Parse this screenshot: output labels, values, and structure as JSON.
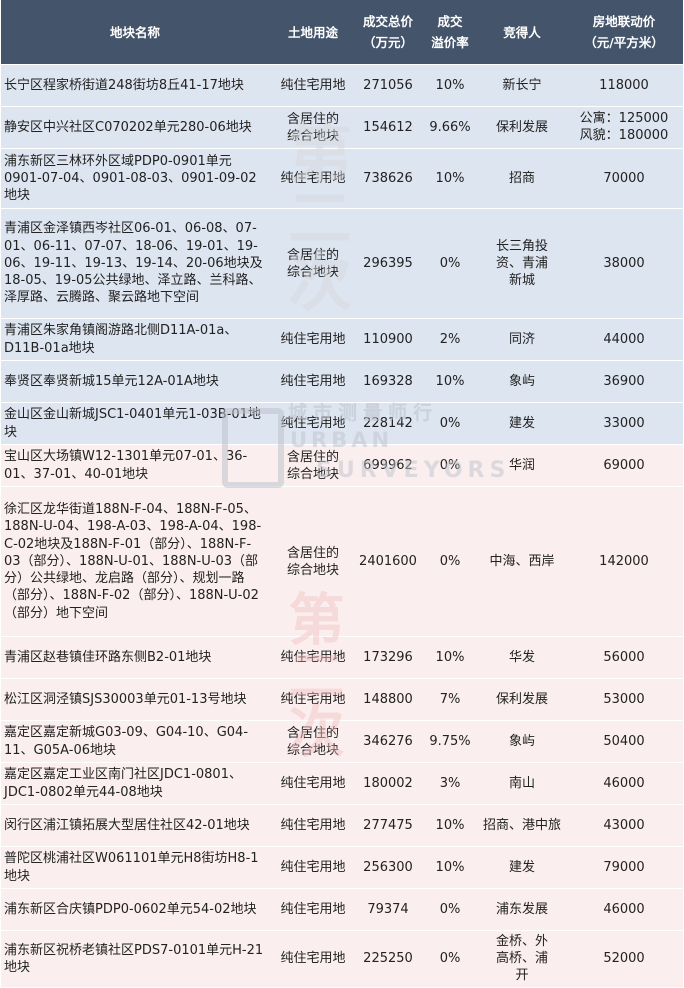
{
  "header": {
    "col_name": "地块名称",
    "col_usage": "土地用途",
    "col_total_l1": "成交总价",
    "col_total_l2": "（万元）",
    "col_premium_l1": "成交",
    "col_premium_l2": "溢价率",
    "col_winner": "竞得人",
    "col_price_l1": "房地联动价",
    "col_price_l2": "（元/平方米）"
  },
  "rows": [
    {
      "name": "长宁区程家桥街道248街坊8丘41-17地块",
      "usage": "纯住宅用地",
      "total": "271056",
      "premium": "10%",
      "winner": "新长宁",
      "price": "118000",
      "tint": "blue"
    },
    {
      "name": "静安区中兴社区C070202单元280-06地块",
      "usage": "含居住的综合地块",
      "total": "154612",
      "premium": "9.66%",
      "winner": "保利发展",
      "price_lines": [
        "公寓：125000",
        "风貌：180000"
      ],
      "tint": "blue"
    },
    {
      "name": "浦东新区三林环外区域PDP0-0901单元0901-07-04、0901-08-03、0901-09-02地块",
      "usage": "纯住宅用地",
      "total": "738626",
      "premium": "10%",
      "winner": "招商",
      "price": "70000",
      "tint": "blue"
    },
    {
      "name": "青浦区金泽镇西岑社区06-01、06-08、07-01、06-11、07-07、18-06、19-01、19-06、19-11、19-13、19-14、20-06地块及18-05、19-05公共绿地、泽立路、兰科路、泽厚路、云腾路、聚云路地下空间",
      "usage": "含居住的综合地块",
      "total": "296395",
      "premium": "0%",
      "winner": "长三角投资、青浦新城",
      "price": "38000",
      "tint": "blue"
    },
    {
      "name": "青浦区朱家角镇阁游路北侧D11A-01a、D11B-01a地块",
      "usage": "纯住宅用地",
      "total": "110900",
      "premium": "2%",
      "winner": "同济",
      "price": "44000",
      "tint": "blue"
    },
    {
      "name": "奉贤区奉贤新城15单元12A-01A地块",
      "usage": "纯住宅用地",
      "total": "169328",
      "premium": "10%",
      "winner": "象屿",
      "price": "36900",
      "tint": "blue"
    },
    {
      "name": "金山区金山新城JSC1-0401单元1-03B-01地块",
      "usage": "纯住宅用地",
      "total": "228142",
      "premium": "0%",
      "winner": "建发",
      "price": "33000",
      "tint": "blue"
    },
    {
      "name": "宝山区大场镇W12-1301单元07-01、36-01、37-01、40-01地块",
      "usage": "含居住的综合地块",
      "total": "699962",
      "premium": "0%",
      "winner": "华润",
      "price": "69000",
      "tint": "pink"
    },
    {
      "name": "徐汇区龙华街道188N-F-04、188N-F-05、188N-U-04、198-A-03、198-A-04、198-C-02地块及188N-F-01（部分）、188N-F-03（部分）、188N-U-01、188N-U-03（部分）公共绿地、龙启路（部分）、规划一路（部分）、188N-F-02（部分）、188N-U-02（部分）地下空间",
      "usage": "含居住的综合地块",
      "total": "2401600",
      "premium": "0%",
      "winner": "中海、西岸",
      "price": "142000",
      "tint": "pink"
    },
    {
      "name": "青浦区赵巷镇佳环路东侧B2-01地块",
      "usage": "纯住宅用地",
      "total": "173296",
      "premium": "10%",
      "winner": "华发",
      "price": "56000",
      "tint": "pink"
    },
    {
      "name": "松江区洞泾镇SJS30003单元01-13号地块",
      "usage": "纯住宅用地",
      "total": "148800",
      "premium": "7%",
      "winner": "保利发展",
      "price": "53000",
      "tint": "pink"
    },
    {
      "name": "嘉定区嘉定新城G03-09、G04-10、G04-11、G05A-06地块",
      "usage": "含居住的综合地块",
      "total": "346276",
      "premium": "9.75%",
      "winner": "象屿",
      "price": "50400",
      "tint": "pink"
    },
    {
      "name": "嘉定区嘉定工业区南门社区JDC1-0801、JDC1-0802单元44-08地块",
      "usage": "纯住宅用地",
      "total": "180002",
      "premium": "3%",
      "winner": "南山",
      "price": "46000",
      "tint": "pink"
    },
    {
      "name": "闵行区浦江镇拓展大型居住社区42-01地块",
      "usage": "纯住宅用地",
      "total": "277475",
      "premium": "10%",
      "winner": "招商、港中旅",
      "price": "43000",
      "tint": "pink"
    },
    {
      "name": "普陀区桃浦社区W061101单元H8街坊H8-1地块",
      "usage": "纯住宅用地",
      "total": "256300",
      "premium": "10%",
      "winner": "建发",
      "price": "79000",
      "tint": "pink"
    },
    {
      "name": "浦东新区合庆镇PDP0-0602单元54-02地块",
      "usage": "纯住宅用地",
      "total": "79374",
      "premium": "0%",
      "winner": "浦东发展",
      "price": "46000",
      "tint": "pink"
    },
    {
      "name": "浦东新区祝桥老镇社区PDS7-0101单元H-21地块",
      "usage": "纯住宅用地",
      "total": "225250",
      "premium": "0%",
      "winner": "金桥、外高桥、浦开",
      "price": "52000",
      "tint": "pink"
    }
  ],
  "watermark": {
    "top_text": "第二次",
    "bottom_text": "第二次",
    "brand_cn": "城市测量师行",
    "brand_en_1": "URBAN",
    "brand_en_2": "SURVEYORS"
  }
}
